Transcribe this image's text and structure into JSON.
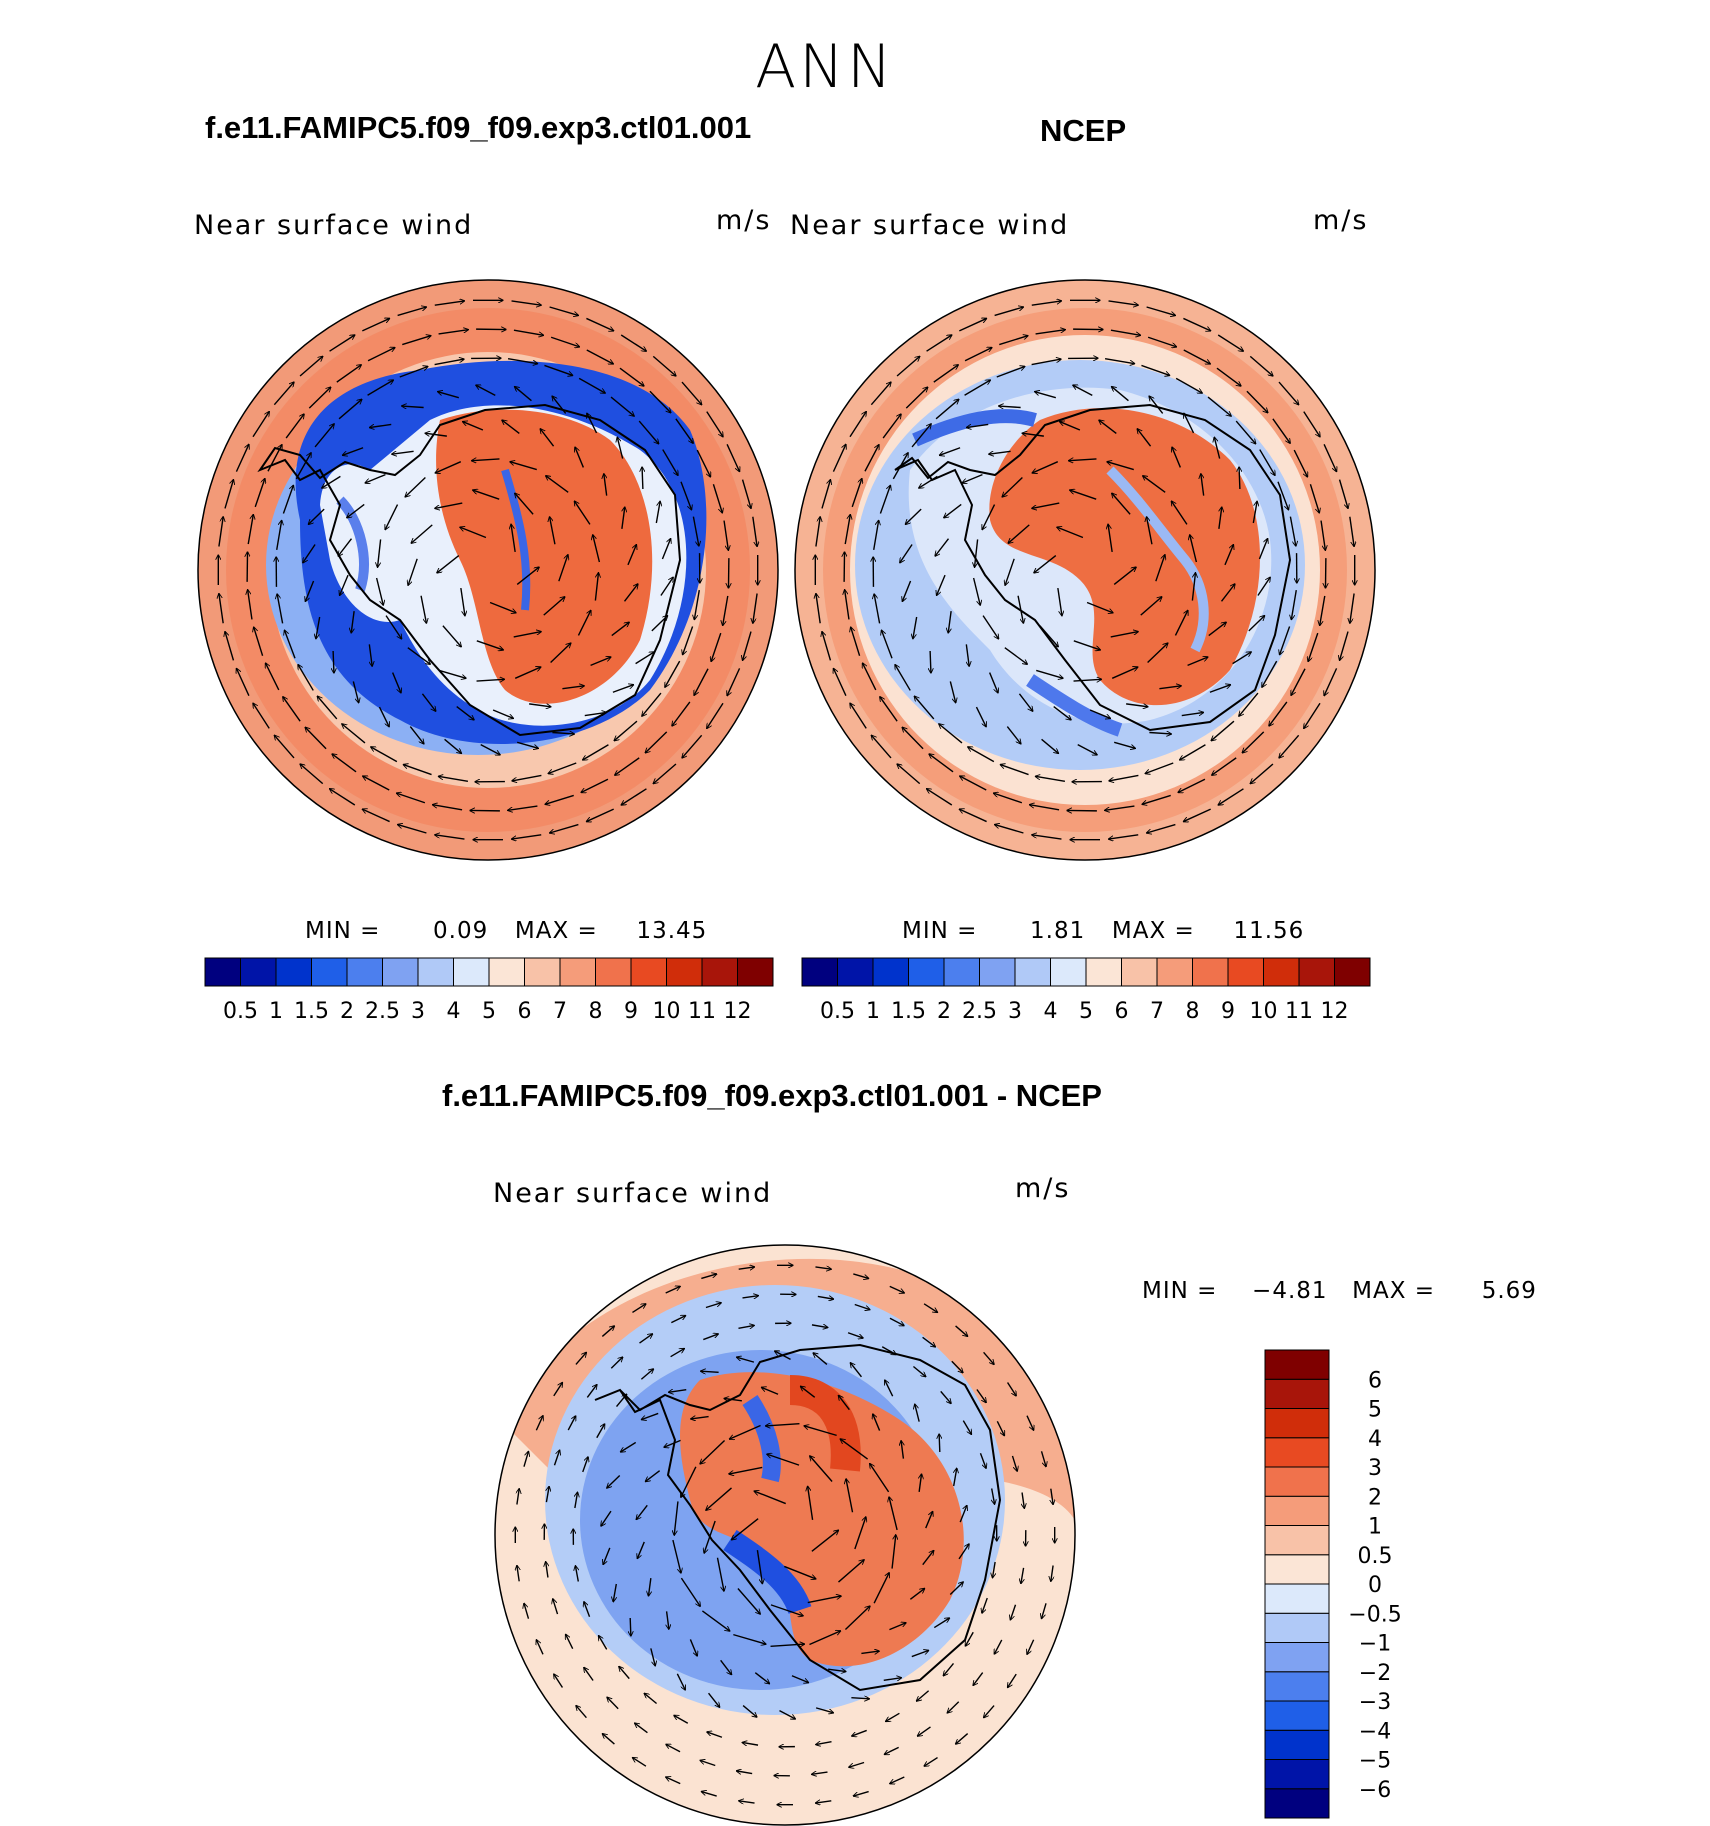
{
  "figure": {
    "title": "ANN"
  },
  "panels": [
    {
      "title": "f.e11.FAMIPC5.f09_f09.exp3.ctl01.001",
      "variable": "Near surface wind",
      "units": "m/s",
      "min_label": "MIN =",
      "min_value": "0.09",
      "max_label": "MAX =",
      "max_value": "13.45"
    },
    {
      "title": "NCEP",
      "variable": "Near surface wind",
      "units": "m/s",
      "min_label": "MIN =",
      "min_value": "1.81",
      "max_label": "MAX =",
      "max_value": "11.56"
    },
    {
      "title": "f.e11.FAMIPC5.f09_f09.exp3.ctl01.001 - NCEP",
      "variable": "Near surface wind",
      "units": "m/s",
      "min_label": "MIN =",
      "min_value": "−4.81",
      "max_label": "MAX =",
      "max_value": "5.69"
    }
  ],
  "chart_data": [
    {
      "type": "heatmap",
      "projection": "south-polar-stereographic",
      "title": "f.e11.FAMIPC5.f09_f09.exp3.ctl01.001",
      "variable": "Near surface wind",
      "units": "m/s",
      "min": 0.09,
      "max": 13.45,
      "colorbar": {
        "orientation": "horizontal",
        "levels": [
          "0.5",
          "1",
          "1.5",
          "2",
          "2.5",
          "3",
          "4",
          "5",
          "6",
          "7",
          "8",
          "9",
          "10",
          "11",
          "12"
        ],
        "colors": [
          "#00007F",
          "#0014A8",
          "#0033CC",
          "#1F5FE8",
          "#4C7FEE",
          "#7FA2F2",
          "#B0C9F7",
          "#DCE9FB",
          "#FBE5D6",
          "#F8C2A8",
          "#F59C7A",
          "#F0724C",
          "#E84A22",
          "#D02D0A",
          "#A8150A",
          "#7F0000"
        ]
      },
      "overlay": "wind vectors"
    },
    {
      "type": "heatmap",
      "projection": "south-polar-stereographic",
      "title": "NCEP",
      "variable": "Near surface wind",
      "units": "m/s",
      "min": 1.81,
      "max": 11.56,
      "colorbar": {
        "orientation": "horizontal",
        "levels": [
          "0.5",
          "1",
          "1.5",
          "2",
          "2.5",
          "3",
          "4",
          "5",
          "6",
          "7",
          "8",
          "9",
          "10",
          "11",
          "12"
        ],
        "colors": [
          "#00007F",
          "#0014A8",
          "#0033CC",
          "#1F5FE8",
          "#4C7FEE",
          "#7FA2F2",
          "#B0C9F7",
          "#DCE9FB",
          "#FBE5D6",
          "#F8C2A8",
          "#F59C7A",
          "#F0724C",
          "#E84A22",
          "#D02D0A",
          "#A8150A",
          "#7F0000"
        ]
      },
      "overlay": "wind vectors"
    },
    {
      "type": "heatmap",
      "projection": "south-polar-stereographic",
      "title": "f.e11.FAMIPC5.f09_f09.exp3.ctl01.001 - NCEP",
      "variable": "Near surface wind",
      "units": "m/s",
      "min": -4.81,
      "max": 5.69,
      "colorbar": {
        "orientation": "vertical",
        "levels": [
          "−6",
          "−5",
          "−4",
          "−3",
          "−2",
          "−1",
          "−0.5",
          "0",
          "0.5",
          "1",
          "2",
          "3",
          "4",
          "5",
          "6"
        ],
        "colors": [
          "#00007F",
          "#0014A8",
          "#0033CC",
          "#1F5FE8",
          "#4C7FEE",
          "#7FA2F2",
          "#B0C9F7",
          "#DCE9FB",
          "#FBE5D6",
          "#F8C2A8",
          "#F59C7A",
          "#F0724C",
          "#E84A22",
          "#D02D0A",
          "#A8150A",
          "#7F0000"
        ]
      },
      "overlay": "wind vector differences"
    }
  ]
}
